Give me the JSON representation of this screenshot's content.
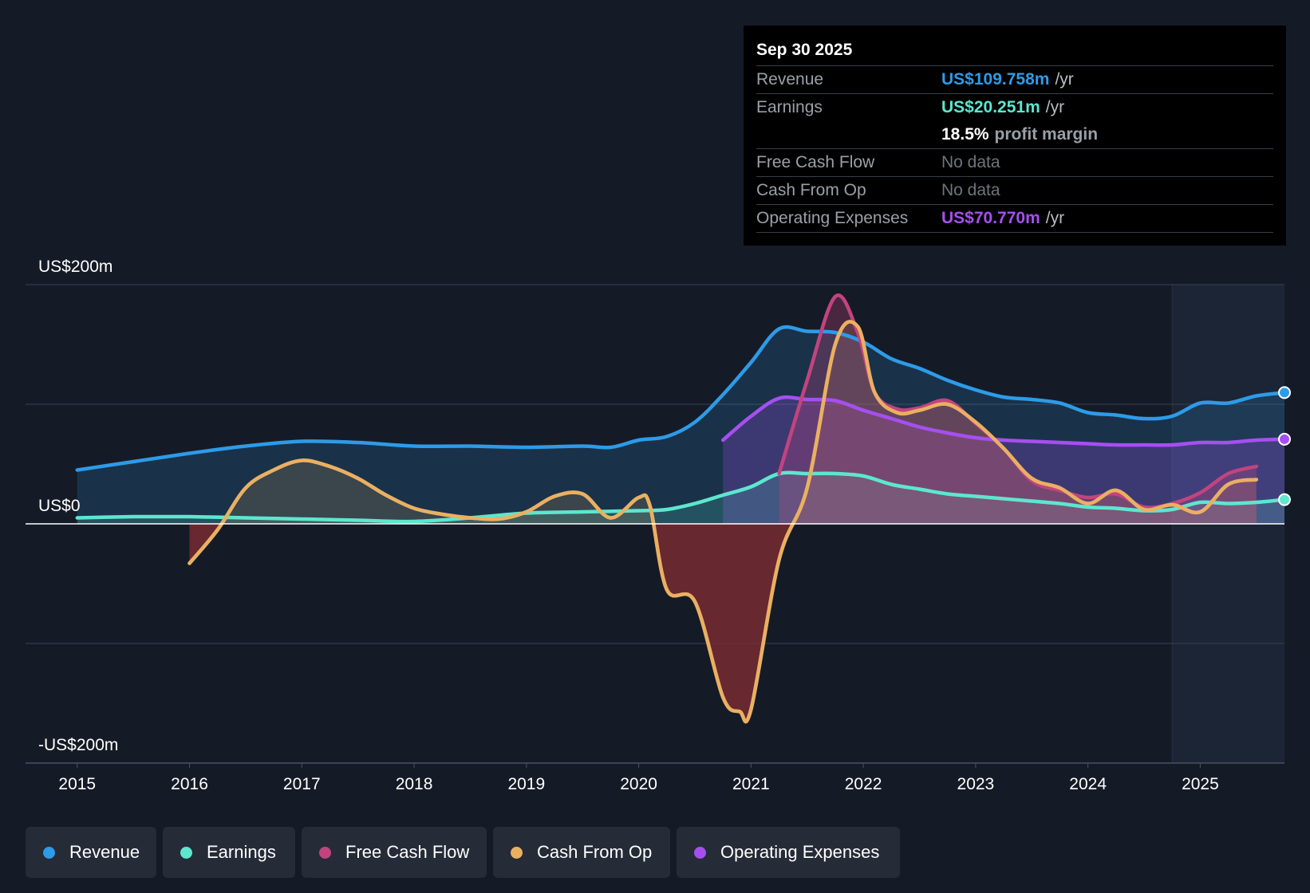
{
  "tooltip": {
    "date": "Sep 30 2025",
    "revenue": {
      "label": "Revenue",
      "value": "US$109.758m",
      "unit": "/yr"
    },
    "earnings": {
      "label": "Earnings",
      "value": "US$20.251m",
      "unit": "/yr"
    },
    "margin": {
      "value": "18.5%",
      "text": "profit margin"
    },
    "fcf": {
      "label": "Free Cash Flow",
      "value": "No data"
    },
    "cfo": {
      "label": "Cash From Op",
      "value": "No data"
    },
    "opex": {
      "label": "Operating Expenses",
      "value": "US$70.770m",
      "unit": "/yr"
    }
  },
  "legend": {
    "revenue": "Revenue",
    "earnings": "Earnings",
    "fcf": "Free Cash Flow",
    "cfo": "Cash From Op",
    "opex": "Operating Expenses"
  },
  "colors": {
    "revenue": "#2d9be8",
    "earnings": "#5ee6cf",
    "fcf": "#c2447e",
    "cfo": "#eab062",
    "opex": "#a64ff0"
  },
  "chart_data": {
    "type": "area",
    "title": "",
    "xlabel": "",
    "ylabel": "",
    "ylim": [
      -200,
      200
    ],
    "y_tick_labels": [
      "US$200m",
      "US$0",
      "-US$200m"
    ],
    "x_ticks": [
      2015,
      2016,
      2017,
      2018,
      2019,
      2020,
      2021,
      2022,
      2023,
      2024,
      2025
    ],
    "x_tick_labels": [
      "2015",
      "2016",
      "2017",
      "2018",
      "2019",
      "2020",
      "2021",
      "2022",
      "2023",
      "2024",
      "2025"
    ],
    "xlim": [
      2014.54,
      2025.75
    ],
    "forecast_region_start": 2024.75,
    "series": [
      {
        "name": "Revenue",
        "key": "revenue",
        "points": [
          [
            2015.0,
            45
          ],
          [
            2015.5,
            52
          ],
          [
            2016.0,
            59
          ],
          [
            2016.5,
            65
          ],
          [
            2017.0,
            69
          ],
          [
            2017.5,
            68
          ],
          [
            2018.0,
            65
          ],
          [
            2018.5,
            65
          ],
          [
            2019.0,
            64
          ],
          [
            2019.5,
            65
          ],
          [
            2019.75,
            64
          ],
          [
            2020.0,
            70
          ],
          [
            2020.25,
            73
          ],
          [
            2020.5,
            85
          ],
          [
            2020.75,
            108
          ],
          [
            2021.0,
            135
          ],
          [
            2021.25,
            163
          ],
          [
            2021.5,
            161
          ],
          [
            2021.75,
            160
          ],
          [
            2022.0,
            152
          ],
          [
            2022.25,
            138
          ],
          [
            2022.5,
            130
          ],
          [
            2022.75,
            120
          ],
          [
            2023.0,
            112
          ],
          [
            2023.25,
            106
          ],
          [
            2023.5,
            104
          ],
          [
            2023.75,
            101
          ],
          [
            2024.0,
            93
          ],
          [
            2024.25,
            91
          ],
          [
            2024.5,
            88
          ],
          [
            2024.75,
            90
          ],
          [
            2025.0,
            101
          ],
          [
            2025.25,
            101
          ],
          [
            2025.5,
            107
          ],
          [
            2025.75,
            109.758
          ]
        ]
      },
      {
        "name": "Earnings",
        "key": "earnings",
        "points": [
          [
            2015.0,
            5
          ],
          [
            2015.5,
            6
          ],
          [
            2016.0,
            6
          ],
          [
            2016.5,
            5
          ],
          [
            2017.0,
            4
          ],
          [
            2017.5,
            3
          ],
          [
            2018.0,
            2
          ],
          [
            2018.5,
            5
          ],
          [
            2019.0,
            9
          ],
          [
            2019.5,
            10
          ],
          [
            2020.0,
            11
          ],
          [
            2020.25,
            12
          ],
          [
            2020.5,
            17
          ],
          [
            2020.75,
            24
          ],
          [
            2021.0,
            31
          ],
          [
            2021.25,
            42
          ],
          [
            2021.5,
            42
          ],
          [
            2021.75,
            42
          ],
          [
            2022.0,
            40
          ],
          [
            2022.25,
            33
          ],
          [
            2022.5,
            29
          ],
          [
            2022.75,
            25
          ],
          [
            2023.0,
            23
          ],
          [
            2023.25,
            21
          ],
          [
            2023.5,
            19
          ],
          [
            2023.75,
            17
          ],
          [
            2024.0,
            14
          ],
          [
            2024.25,
            13
          ],
          [
            2024.5,
            11
          ],
          [
            2024.75,
            12
          ],
          [
            2025.0,
            18
          ],
          [
            2025.25,
            17
          ],
          [
            2025.5,
            18
          ],
          [
            2025.75,
            20.251
          ]
        ]
      },
      {
        "name": "Free Cash Flow",
        "key": "fcf",
        "points": [
          [
            2021.25,
            42
          ],
          [
            2021.5,
            120
          ],
          [
            2021.75,
            190
          ],
          [
            2021.95,
            160
          ],
          [
            2022.1,
            110
          ],
          [
            2022.3,
            96
          ],
          [
            2022.5,
            97
          ],
          [
            2022.75,
            103
          ],
          [
            2023.0,
            84
          ],
          [
            2023.25,
            63
          ],
          [
            2023.5,
            36
          ],
          [
            2023.75,
            28
          ],
          [
            2024.0,
            22
          ],
          [
            2024.25,
            25
          ],
          [
            2024.5,
            14
          ],
          [
            2024.75,
            17
          ],
          [
            2025.0,
            26
          ],
          [
            2025.25,
            42
          ],
          [
            2025.5,
            48
          ]
        ]
      },
      {
        "name": "Cash From Op",
        "key": "cfo",
        "points": [
          [
            2016.0,
            -33
          ],
          [
            2016.25,
            -5
          ],
          [
            2016.5,
            30
          ],
          [
            2016.75,
            45
          ],
          [
            2017.0,
            53
          ],
          [
            2017.25,
            48
          ],
          [
            2017.5,
            38
          ],
          [
            2017.75,
            24
          ],
          [
            2018.0,
            13
          ],
          [
            2018.25,
            8
          ],
          [
            2018.5,
            5
          ],
          [
            2018.75,
            4
          ],
          [
            2019.0,
            10
          ],
          [
            2019.25,
            23
          ],
          [
            2019.5,
            25
          ],
          [
            2019.75,
            5
          ],
          [
            2020.0,
            22
          ],
          [
            2020.1,
            15
          ],
          [
            2020.25,
            -55
          ],
          [
            2020.5,
            -65
          ],
          [
            2020.75,
            -145
          ],
          [
            2020.9,
            -157
          ],
          [
            2021.0,
            -155
          ],
          [
            2021.25,
            -30
          ],
          [
            2021.5,
            30
          ],
          [
            2021.75,
            150
          ],
          [
            2021.95,
            165
          ],
          [
            2022.1,
            110
          ],
          [
            2022.3,
            93
          ],
          [
            2022.5,
            95
          ],
          [
            2022.75,
            100
          ],
          [
            2023.0,
            85
          ],
          [
            2023.25,
            63
          ],
          [
            2023.5,
            38
          ],
          [
            2023.75,
            30
          ],
          [
            2024.0,
            17
          ],
          [
            2024.25,
            28
          ],
          [
            2024.5,
            12
          ],
          [
            2024.75,
            16
          ],
          [
            2025.0,
            10
          ],
          [
            2025.25,
            33
          ],
          [
            2025.5,
            37
          ]
        ]
      },
      {
        "name": "Operating Expenses",
        "key": "opex",
        "points": [
          [
            2020.75,
            70
          ],
          [
            2021.0,
            90
          ],
          [
            2021.25,
            105
          ],
          [
            2021.5,
            104
          ],
          [
            2021.75,
            103
          ],
          [
            2022.0,
            95
          ],
          [
            2022.25,
            88
          ],
          [
            2022.5,
            81
          ],
          [
            2022.75,
            76
          ],
          [
            2023.0,
            72
          ],
          [
            2023.25,
            70
          ],
          [
            2023.5,
            69
          ],
          [
            2023.75,
            68
          ],
          [
            2024.0,
            67
          ],
          [
            2024.25,
            66
          ],
          [
            2024.5,
            66
          ],
          [
            2024.75,
            66
          ],
          [
            2025.0,
            68
          ],
          [
            2025.25,
            68
          ],
          [
            2025.5,
            70
          ],
          [
            2025.75,
            70.77
          ]
        ]
      }
    ]
  }
}
